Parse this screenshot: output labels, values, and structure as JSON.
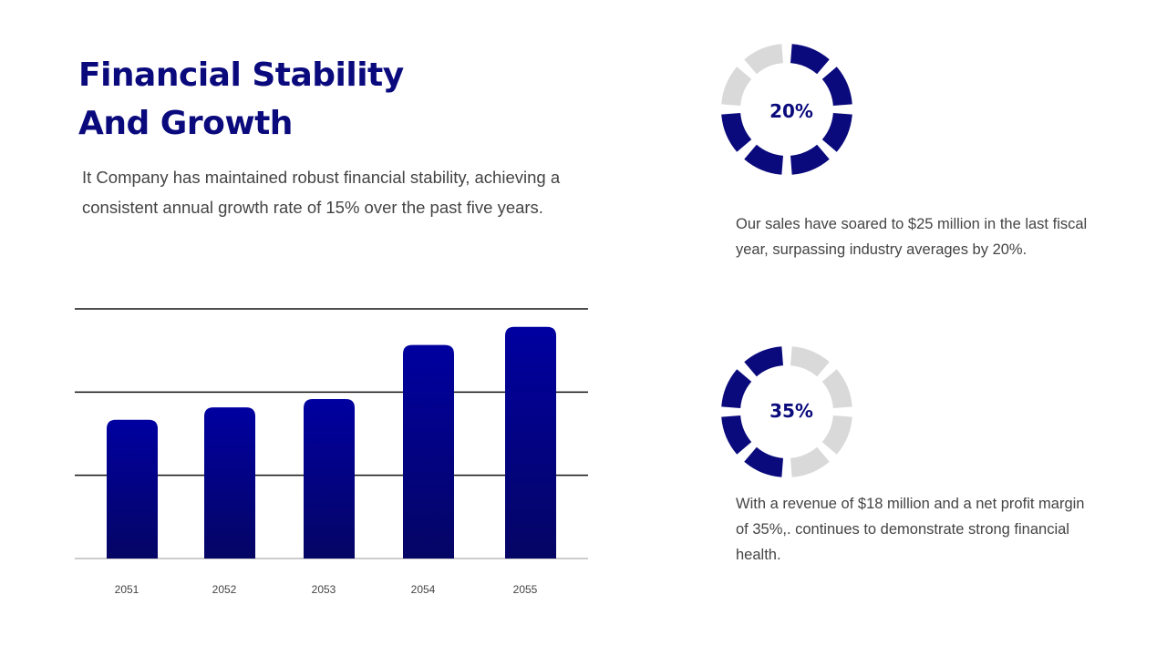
{
  "header": {
    "title_line1": "Financial Stability",
    "title_line2": "And Growth",
    "intro": "It Company has maintained robust financial stability, achieving a  consistent annual growth rate of 15% over the past five years."
  },
  "colors": {
    "accent": "#0a0a7d",
    "bar_top": "#0000a0",
    "bar_bottom": "#050565",
    "donut_empty": "#d9d9d9",
    "text": "#444444"
  },
  "chart_data": {
    "type": "bar",
    "categories": [
      "2051",
      "2052",
      "2053",
      "2054",
      "2055"
    ],
    "values": [
      50,
      54.5,
      57.5,
      77,
      83.5
    ],
    "ylim": [
      0,
      90
    ],
    "gridlines": [
      30,
      60,
      90
    ],
    "title": "",
    "xlabel": "",
    "ylabel": ""
  },
  "metrics": [
    {
      "label": "20%",
      "filled_segments": [
        0,
        1,
        2,
        3,
        4,
        5
      ],
      "total_segments": 8,
      "description": "Our sales have soared to $25 million in the last fiscal year, surpassing industry averages by 20%."
    },
    {
      "label": "35%",
      "filled_segments": [
        4,
        5,
        6,
        7
      ],
      "total_segments": 8,
      "description": "With a revenue of $18 million and a net profit margin of 35%,. continues to demonstrate strong financial health."
    }
  ]
}
